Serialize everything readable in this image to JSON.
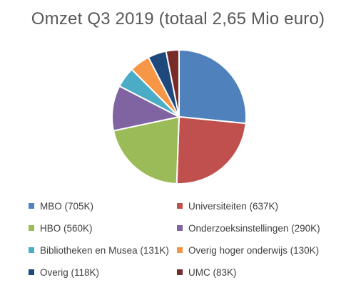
{
  "chart_data": {
    "type": "pie",
    "title": "Omzet Q3 2019 (totaal 2,65 Mio euro)",
    "categories": [
      "MBO (705K)",
      "Universiteiten (637K)",
      "HBO (560K)",
      "Onderzoeksinstellingen (290K)",
      "Bibliotheken en Musea (131K)",
      "Overig hoger onderwijs (130K)",
      "Overig (118K)",
      "UMC (83K)"
    ],
    "values": [
      705,
      637,
      560,
      290,
      131,
      130,
      118,
      83
    ],
    "colors": [
      "#4f81bd",
      "#c0504d",
      "#9bbb59",
      "#8064a2",
      "#4bacc6",
      "#f79646",
      "#1f497d",
      "#772c2a"
    ],
    "legend": "bottom",
    "start_angle": "12-o'clock",
    "direction": "clockwise"
  }
}
